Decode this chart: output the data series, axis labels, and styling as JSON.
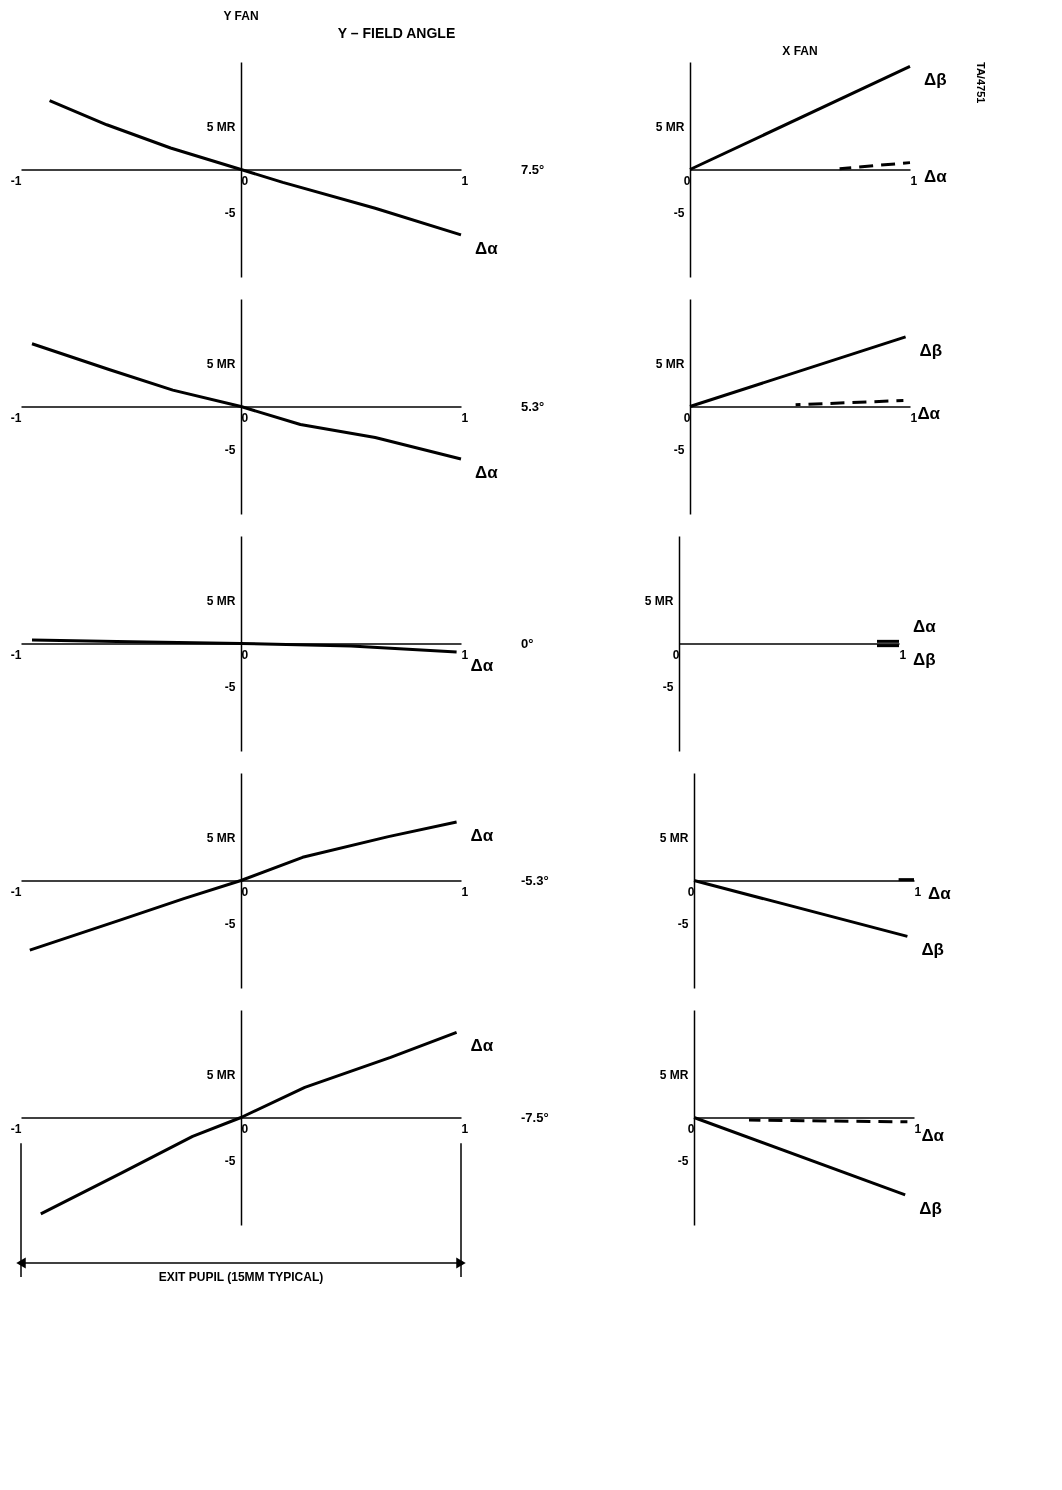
{
  "chart_data": [
    {
      "type": "line",
      "title": "Y FAN",
      "xlim": [
        -1,
        1
      ],
      "ylim": [
        -12.5,
        12.5
      ],
      "xticks": [
        -1,
        0,
        1
      ],
      "yticks": [
        {
          "value": 5,
          "label": "5 MR"
        },
        {
          "value": 0,
          "label": null
        },
        -5
      ],
      "annotations": [
        "Y – FIELD ANGLE",
        "7.5°"
      ],
      "series": [
        {
          "name": "Δα",
          "color": "#000000",
          "x": [
            -0.87,
            -0.61,
            -0.32,
            0,
            0.19,
            0.61,
            1.0
          ],
          "values": [
            8.0,
            5.2,
            2.5,
            0,
            -1.5,
            -4.5,
            -7.6
          ]
        }
      ]
    },
    {
      "type": "line",
      "title": "X FAN",
      "xlim": [
        0,
        1
      ],
      "ylim": [
        -12.5,
        12.5
      ],
      "xticks": [
        0,
        1
      ],
      "yticks": [
        {
          "value": 5,
          "label": "5 MR"
        },
        {
          "value": 0,
          "label": null
        },
        -5
      ],
      "annotations": [
        "TA/4751"
      ],
      "series": [
        {
          "name": "Δβ",
          "color": "#000000",
          "x": [
            0,
            1.0
          ],
          "values": [
            0,
            12
          ]
        },
        {
          "name": "Δα",
          "color": "#000000",
          "x": [
            0.68,
            1.0
          ],
          "values": [
            0.1,
            0.8
          ],
          "line_style": "dashed"
        }
      ]
    },
    {
      "type": "line",
      "xlim": [
        -1,
        1
      ],
      "ylim": [
        -12.5,
        12.5
      ],
      "xticks": [
        -1,
        0,
        1
      ],
      "yticks": [
        {
          "value": 5,
          "label": "5 MR"
        },
        {
          "value": 0,
          "label": null
        },
        -5
      ],
      "annotations": [
        "5.3°"
      ],
      "series": [
        {
          "name": "Δα",
          "color": "#000000",
          "x": [
            -0.95,
            -0.6,
            -0.31,
            0,
            0.27,
            0.61,
            1.0
          ],
          "values": [
            7.3,
            4.3,
            1.9,
            0,
            -2.1,
            -3.6,
            -6.1
          ]
        }
      ]
    },
    {
      "type": "line",
      "xlim": [
        0,
        1
      ],
      "ylim": [
        -12.5,
        12.5
      ],
      "xticks": [
        0,
        1
      ],
      "yticks": [
        {
          "value": 5,
          "label": "5 MR"
        },
        {
          "value": 0,
          "label": null
        },
        -5
      ],
      "series": [
        {
          "name": "Δβ",
          "color": "#000000",
          "x": [
            0,
            0.98
          ],
          "values": [
            0,
            8.1
          ]
        },
        {
          "name": "Δα",
          "color": "#000000",
          "x": [
            0.48,
            0.97
          ],
          "values": [
            0.2,
            0.7
          ],
          "line_style": "dashed"
        }
      ]
    },
    {
      "type": "line",
      "xlim": [
        -1,
        1
      ],
      "ylim": [
        -12.5,
        12.5
      ],
      "xticks": [
        -1,
        0,
        1
      ],
      "yticks": [
        {
          "value": 5,
          "label": "5 MR"
        },
        {
          "value": 0,
          "label": null
        },
        -5
      ],
      "annotations": [
        "0°"
      ],
      "series": [
        {
          "name": "Δα",
          "color": "#000000",
          "x": [
            -0.95,
            -0.5,
            0,
            0.5,
            0.98
          ],
          "values": [
            0.4,
            0.2,
            0,
            -0.3,
            -1.0
          ]
        }
      ]
    },
    {
      "type": "line",
      "xlim": [
        0,
        1
      ],
      "ylim": [
        -12.5,
        12.5
      ],
      "xticks": [
        0,
        1
      ],
      "yticks": [
        {
          "value": 5,
          "label": "5 MR"
        },
        {
          "value": 0,
          "label": null
        },
        -5
      ],
      "series": [
        {
          "name": "Δα",
          "color": "#000000",
          "x": [
            0.9,
            1.0
          ],
          "values": [
            0.25,
            0.25
          ]
        },
        {
          "name": "Δβ",
          "color": "#000000",
          "x": [
            0.9,
            1.0
          ],
          "values": [
            -0.25,
            -0.25
          ]
        }
      ]
    },
    {
      "type": "line",
      "xlim": [
        -1,
        1
      ],
      "ylim": [
        -12.5,
        12.5
      ],
      "xticks": [
        -1,
        0,
        1
      ],
      "yticks": [
        {
          "value": 5,
          "label": "5 MR"
        },
        {
          "value": 0,
          "label": null
        },
        -5
      ],
      "annotations": [
        "-5.3°"
      ],
      "series": [
        {
          "name": "Δα",
          "color": "#000000",
          "x": [
            -0.96,
            -0.55,
            -0.26,
            0,
            0.28,
            0.67,
            0.98
          ],
          "values": [
            -8.1,
            -4.6,
            -2.1,
            0,
            2.7,
            5.1,
            6.8
          ]
        }
      ]
    },
    {
      "type": "line",
      "xlim": [
        0,
        1
      ],
      "ylim": [
        -12.5,
        12.5
      ],
      "xticks": [
        0,
        1
      ],
      "yticks": [
        {
          "value": 5,
          "label": "5 MR"
        },
        {
          "value": 0,
          "label": null
        },
        -5
      ],
      "series": [
        {
          "name": "Δα",
          "color": "#000000",
          "x": [
            0.93,
            1.0
          ],
          "values": [
            0.1,
            0.1
          ]
        },
        {
          "name": "Δβ",
          "color": "#000000",
          "x": [
            0,
            0.97
          ],
          "values": [
            0,
            -6.5
          ]
        }
      ]
    },
    {
      "type": "line",
      "xlim": [
        -1,
        1
      ],
      "ylim": [
        -12.5,
        12.5
      ],
      "xticks": [
        -1,
        0,
        1
      ],
      "yticks": [
        {
          "value": 5,
          "label": "5 MR"
        },
        {
          "value": 0,
          "label": null
        },
        -5
      ],
      "annotations": [
        "EXIT PUPIL (15MM TYPICAL)",
        "-7.5°"
      ],
      "series": [
        {
          "name": "Δα",
          "color": "#000000",
          "x": [
            -0.91,
            -0.54,
            -0.22,
            0,
            0.29,
            0.68,
            0.98
          ],
          "values": [
            -11.2,
            -6.4,
            -2.2,
            0,
            3.5,
            7.0,
            9.9
          ]
        }
      ]
    },
    {
      "type": "line",
      "xlim": [
        0,
        1
      ],
      "ylim": [
        -12.5,
        12.5
      ],
      "xticks": [
        0,
        1
      ],
      "yticks": [
        {
          "value": 5,
          "label": "5 MR"
        },
        {
          "value": 0,
          "label": null
        },
        -5
      ],
      "series": [
        {
          "name": "Δβ",
          "color": "#000000",
          "x": [
            0,
            0.96
          ],
          "values": [
            0,
            -9.0
          ]
        },
        {
          "name": "Δα",
          "color": "#000000",
          "x": [
            0.25,
            0.97
          ],
          "values": [
            -0.3,
            -0.5
          ],
          "line_style": "dashed"
        }
      ]
    }
  ]
}
